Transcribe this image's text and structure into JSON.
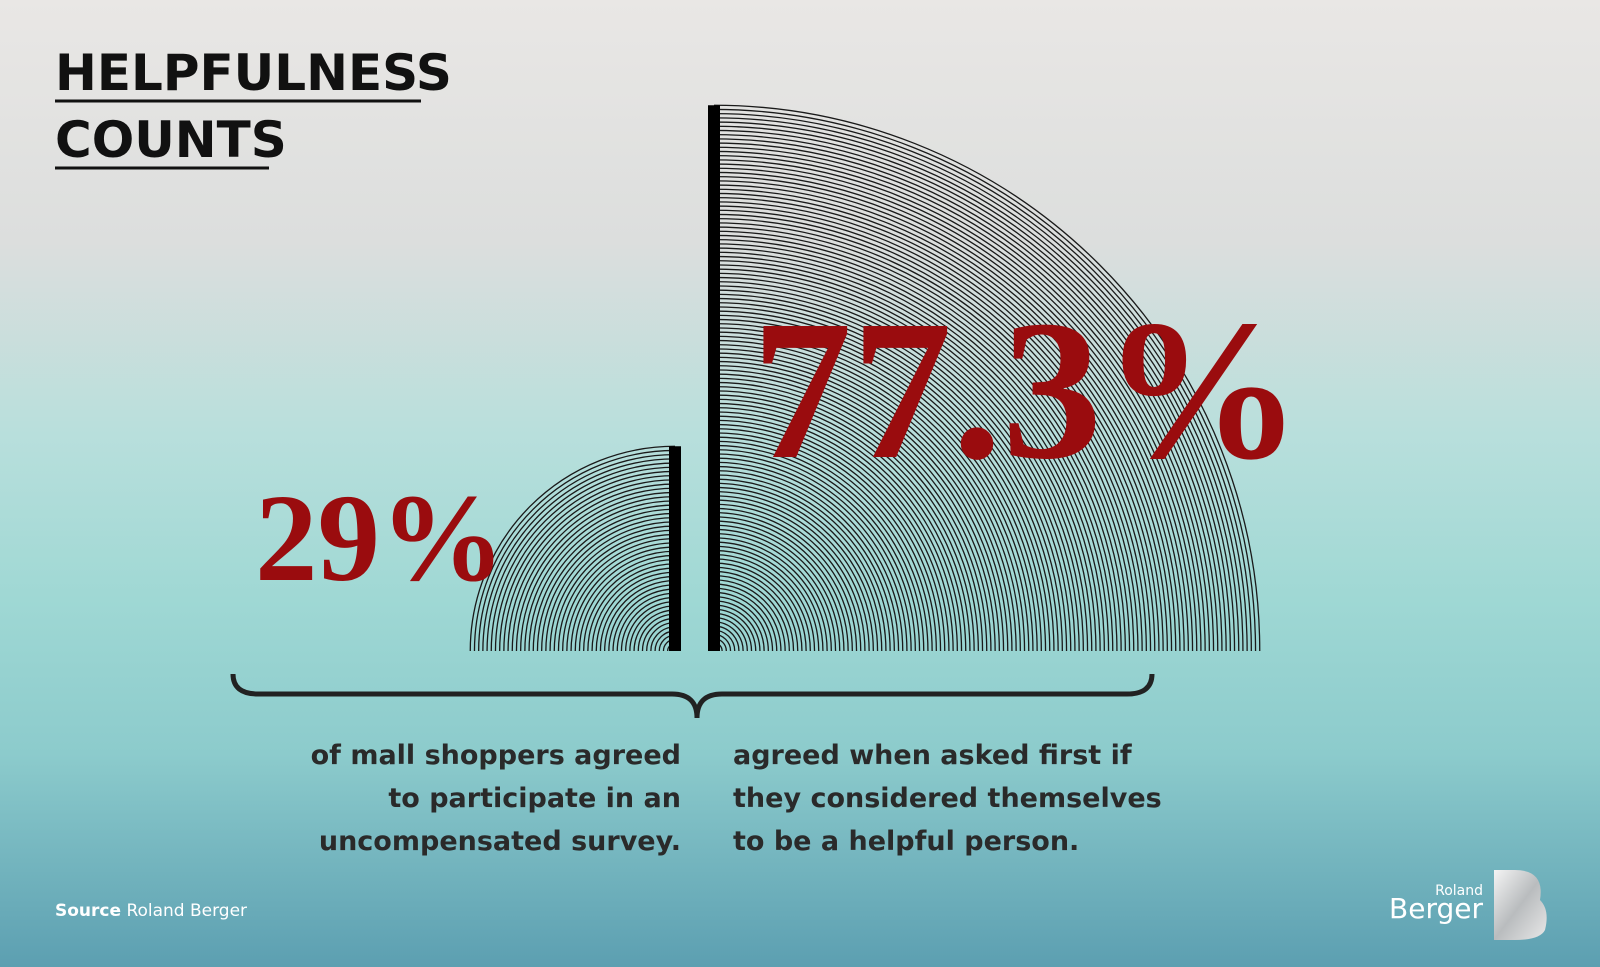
{
  "chart_data": {
    "type": "quarter-circle",
    "title_lines": [
      "HELPFULNESS",
      "COUNTS"
    ],
    "values": [
      29,
      77.3
    ],
    "value_labels": [
      "29%",
      "77.3%"
    ],
    "descriptions": [
      [
        "of mall shoppers agreed",
        "to participate in an",
        "uncompensated survey."
      ],
      [
        "agreed when asked first if",
        "they considered themselves",
        "to be a helpful person."
      ]
    ],
    "color": "#1a1a1a",
    "label_color": "#9a0c0e",
    "source_label": "Source",
    "source": "Roland Berger",
    "logo": [
      "Roland",
      "Berger"
    ]
  }
}
